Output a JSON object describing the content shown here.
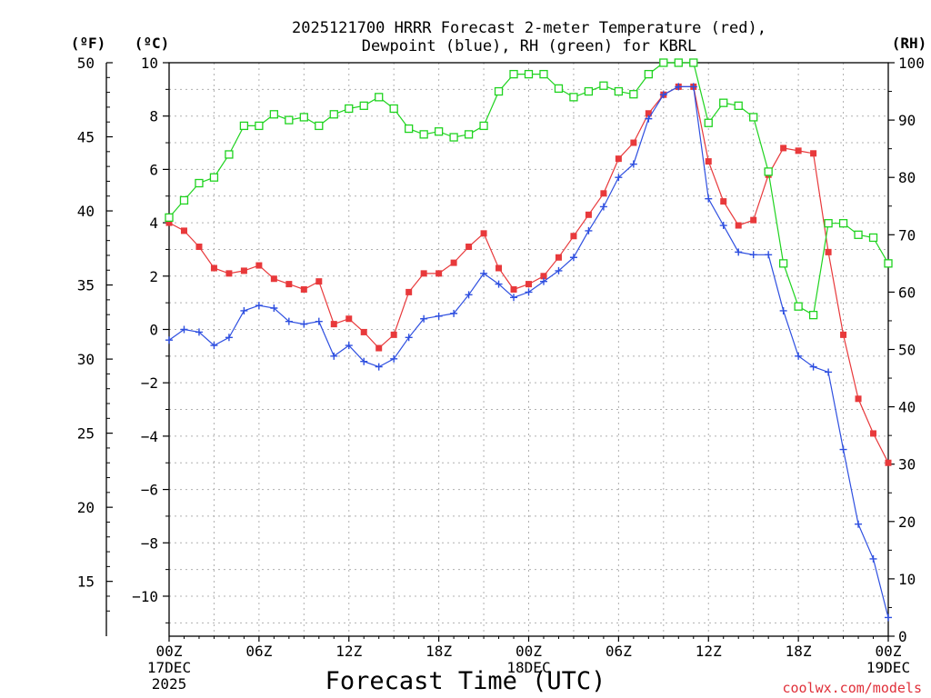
{
  "chart_data": {
    "type": "line",
    "title_line1": "2025121700 HRRR Forecast 2-meter Temperature (red),",
    "title_line2": "Dewpoint (blue), RH (green) for KBRL",
    "xlabel": "Forecast Time (UTC)",
    "credit": "coolwx.com/models",
    "unit_f": "(ºF)",
    "unit_c": "(ºC)",
    "unit_rh": "(RH)",
    "xlim": [
      0,
      48
    ],
    "ylim_c": [
      -11.5,
      10
    ],
    "ylim_rh": [
      0,
      100
    ],
    "x_ticks": [
      {
        "x": 0,
        "label": "00Z",
        "sub1": "17DEC",
        "sub2": "2025"
      },
      {
        "x": 6,
        "label": "06Z",
        "sub1": "",
        "sub2": ""
      },
      {
        "x": 12,
        "label": "12Z",
        "sub1": "",
        "sub2": ""
      },
      {
        "x": 18,
        "label": "18Z",
        "sub1": "",
        "sub2": ""
      },
      {
        "x": 24,
        "label": "00Z",
        "sub1": "18DEC",
        "sub2": ""
      },
      {
        "x": 30,
        "label": "06Z",
        "sub1": "",
        "sub2": ""
      },
      {
        "x": 36,
        "label": "12Z",
        "sub1": "",
        "sub2": ""
      },
      {
        "x": 42,
        "label": "18Z",
        "sub1": "",
        "sub2": ""
      },
      {
        "x": 48,
        "label": "00Z",
        "sub1": "19DEC",
        "sub2": ""
      }
    ],
    "y_ticks_c": [
      {
        "v": 10,
        "label": "10"
      },
      {
        "v": 8,
        "label": "8"
      },
      {
        "v": 6,
        "label": "6"
      },
      {
        "v": 4,
        "label": "4"
      },
      {
        "v": 2,
        "label": "2"
      },
      {
        "v": 0,
        "label": "0"
      },
      {
        "v": -2,
        "label": "−2"
      },
      {
        "v": -4,
        "label": "−4"
      },
      {
        "v": -6,
        "label": "−6"
      },
      {
        "v": -8,
        "label": "−8"
      },
      {
        "v": -10,
        "label": "−10"
      }
    ],
    "y_ticks_f": [
      {
        "v": 50,
        "label": "50"
      },
      {
        "v": 45,
        "label": "45"
      },
      {
        "v": 40,
        "label": "40"
      },
      {
        "v": 35,
        "label": "35"
      },
      {
        "v": 30,
        "label": "30"
      },
      {
        "v": 25,
        "label": "25"
      },
      {
        "v": 20,
        "label": "20"
      },
      {
        "v": 15,
        "label": "15"
      }
    ],
    "y_ticks_rh": [
      {
        "v": 100,
        "label": "100"
      },
      {
        "v": 90,
        "label": "90"
      },
      {
        "v": 80,
        "label": "80"
      },
      {
        "v": 70,
        "label": "70"
      },
      {
        "v": 60,
        "label": "60"
      },
      {
        "v": 50,
        "label": "50"
      },
      {
        "v": 40,
        "label": "40"
      },
      {
        "v": 30,
        "label": "30"
      },
      {
        "v": 20,
        "label": "20"
      },
      {
        "v": 10,
        "label": "10"
      },
      {
        "v": 0,
        "label": "0"
      }
    ],
    "x": [
      0,
      1,
      2,
      3,
      4,
      5,
      6,
      7,
      8,
      9,
      10,
      11,
      12,
      13,
      14,
      15,
      16,
      17,
      18,
      19,
      20,
      21,
      22,
      23,
      24,
      25,
      26,
      27,
      28,
      29,
      30,
      31,
      32,
      33,
      34,
      35,
      36,
      37,
      38,
      39,
      40,
      41,
      42,
      43,
      44,
      45,
      46,
      47,
      48
    ],
    "series": [
      {
        "name": "Temperature",
        "color": "#e8393b",
        "marker": "filled-square",
        "values": [
          4.0,
          3.7,
          3.1,
          2.3,
          2.1,
          2.2,
          2.4,
          1.9,
          1.7,
          1.5,
          1.8,
          0.2,
          0.4,
          -0.1,
          -0.7,
          -0.2,
          1.4,
          2.1,
          2.1,
          2.5,
          3.1,
          3.6,
          2.3,
          1.5,
          1.7,
          2.0,
          2.7,
          3.5,
          4.3,
          5.1,
          6.4,
          7.0,
          8.1,
          8.8,
          9.1,
          9.1,
          6.3,
          4.8,
          3.9,
          4.1,
          5.8,
          6.8,
          6.7,
          6.6,
          2.9,
          -0.2,
          -2.6,
          -3.9,
          -5.0
        ]
      },
      {
        "name": "Dewpoint",
        "color": "#2e4fe0",
        "marker": "plus",
        "values": [
          -0.4,
          0.0,
          -0.1,
          -0.6,
          -0.3,
          0.7,
          0.9,
          0.8,
          0.3,
          0.2,
          0.3,
          -1.0,
          -0.6,
          -1.2,
          -1.4,
          -1.1,
          -0.3,
          0.4,
          0.5,
          0.6,
          1.3,
          2.1,
          1.7,
          1.2,
          1.4,
          1.8,
          2.2,
          2.7,
          3.7,
          4.6,
          5.7,
          6.2,
          7.9,
          8.8,
          9.1,
          9.1,
          4.9,
          3.9,
          2.9,
          2.8,
          2.8,
          0.7,
          -1.0,
          -1.4,
          -1.6,
          -4.5,
          -7.3,
          -8.6,
          -10.8
        ]
      },
      {
        "name": "RH",
        "color": "#1fd31f",
        "marker": "open-square",
        "values": [
          73,
          76,
          79,
          80,
          84,
          89,
          89,
          91,
          90,
          90.5,
          89,
          91,
          92,
          92.5,
          94,
          92,
          88.5,
          87.5,
          88,
          87,
          87.5,
          89,
          95,
          98,
          98,
          98,
          95.5,
          94,
          95,
          96,
          95,
          94.5,
          98,
          100,
          100,
          100,
          89.5,
          93,
          92.5,
          90.5,
          81,
          65,
          57.5,
          56,
          72,
          72,
          70,
          69.5,
          65
        ]
      }
    ]
  }
}
